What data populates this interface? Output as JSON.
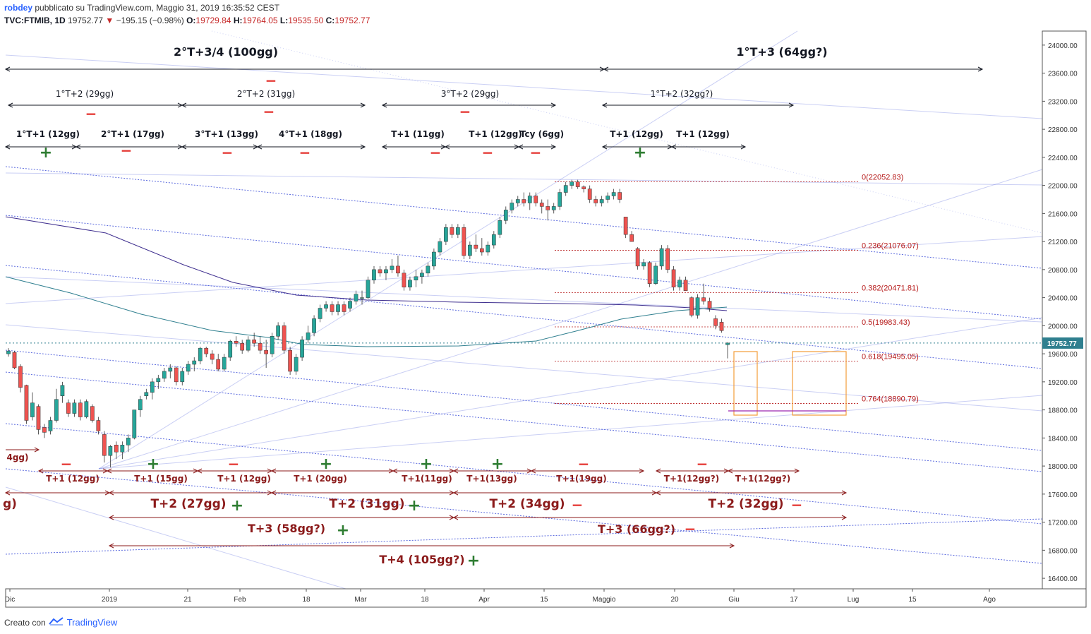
{
  "header": {
    "author": "robdey",
    "published": "pubblicato su TradingView.com, Maggio 31, 2019 16:35:52 CEST",
    "symbol": "TVC:FTMIB, 1D",
    "last": "19752.77",
    "change": "−195.15 (−0.98%)",
    "o_label": "O:",
    "o_value": "19729.84",
    "h_label": "H:",
    "h_value": "19764.05",
    "l_label": "L:",
    "l_value": "19535.50",
    "c_label": "C:",
    "c_value": "19752.77"
  },
  "footer": {
    "created_with": "Creato con",
    "brand": "TradingView"
  },
  "colors": {
    "up": "#26a69a",
    "down": "#ef5350",
    "annot_dark": "#131722",
    "annot_red": "#8b1a1a",
    "plus": "#2e7d32",
    "minus": "#e53935",
    "channel": "#3f51d8",
    "fib": "#b71c1c",
    "box": "#f29d38",
    "ma_slow": "#3f2f8f",
    "ma_fast": "#2f7f8f"
  },
  "chart_data": {
    "type": "candlestick",
    "yaxis": {
      "ticks": [
        "16400.00",
        "16800.00",
        "17200.00",
        "17600.00",
        "18000.00",
        "18400.00",
        "18800.00",
        "19200.00",
        "19600.00",
        "20000.00",
        "20400.00",
        "20800.00",
        "21200.00",
        "21600.00",
        "22000.00",
        "22400.00",
        "22800.00",
        "23200.00",
        "23600.00",
        "24000.00"
      ],
      "ylim": [
        16250,
        24200
      ],
      "last_price_label": "19752.77",
      "last_price": 19752.77
    },
    "xaxis": {
      "ticks": [
        "Dic",
        "2019",
        "21",
        "Feb",
        "18",
        "Mar",
        "18",
        "Apr",
        "15",
        "Maggio",
        "20",
        "Giu",
        "17",
        "Lug",
        "15",
        "Ago"
      ]
    },
    "candles_ohlc": [
      [
        19600,
        19680,
        19560,
        19640
      ],
      [
        19620,
        19640,
        19380,
        19400
      ],
      [
        19420,
        19450,
        19050,
        19120
      ],
      [
        19150,
        19160,
        18600,
        18650
      ],
      [
        18700,
        19050,
        18650,
        18900
      ],
      [
        18850,
        18880,
        18450,
        18520
      ],
      [
        18550,
        18600,
        18400,
        18480
      ],
      [
        18500,
        18700,
        18450,
        18650
      ],
      [
        18650,
        19100,
        18620,
        18950
      ],
      [
        19000,
        19200,
        18900,
        19150
      ],
      [
        18900,
        18950,
        18700,
        18750
      ],
      [
        18750,
        18950,
        18700,
        18900
      ],
      [
        18900,
        18950,
        18650,
        18700
      ],
      [
        18700,
        18950,
        18680,
        18920
      ],
      [
        18850,
        18880,
        18620,
        18650
      ],
      [
        18650,
        18700,
        18450,
        18500
      ],
      [
        18450,
        18500,
        18050,
        18150
      ],
      [
        18150,
        18300,
        17980,
        18280
      ],
      [
        18300,
        18350,
        18100,
        18200
      ],
      [
        18200,
        18350,
        18100,
        18300
      ],
      [
        18300,
        18450,
        18200,
        18400
      ],
      [
        18400,
        18800,
        18380,
        18800
      ],
      [
        18800,
        19000,
        18700,
        18950
      ],
      [
        19000,
        19100,
        18950,
        19050
      ],
      [
        19050,
        19250,
        18950,
        19200
      ],
      [
        19200,
        19300,
        19100,
        19250
      ],
      [
        19250,
        19400,
        19200,
        19350
      ],
      [
        19350,
        19450,
        19250,
        19400
      ],
      [
        19400,
        19420,
        19150,
        19200
      ],
      [
        19200,
        19400,
        19150,
        19350
      ],
      [
        19350,
        19500,
        19300,
        19450
      ],
      [
        19450,
        19550,
        19350,
        19500
      ],
      [
        19500,
        19700,
        19450,
        19680
      ],
      [
        19680,
        19700,
        19550,
        19600
      ],
      [
        19600,
        19650,
        19450,
        19520
      ],
      [
        19520,
        19600,
        19350,
        19380
      ],
      [
        19380,
        19600,
        19350,
        19550
      ],
      [
        19550,
        19800,
        19500,
        19780
      ],
      [
        19780,
        19850,
        19700,
        19750
      ],
      [
        19750,
        19800,
        19600,
        19650
      ],
      [
        19650,
        19850,
        19620,
        19800
      ],
      [
        19800,
        19900,
        19700,
        19750
      ],
      [
        19750,
        19850,
        19600,
        19650
      ],
      [
        19650,
        19800,
        19400,
        19600
      ],
      [
        19600,
        19900,
        19550,
        19850
      ],
      [
        19850,
        20050,
        19800,
        20000
      ],
      [
        20000,
        20050,
        19600,
        19650
      ],
      [
        19650,
        19700,
        19300,
        19350
      ],
      [
        19350,
        19600,
        19300,
        19550
      ],
      [
        19550,
        19850,
        19500,
        19800
      ],
      [
        19800,
        20000,
        19750,
        19900
      ],
      [
        19900,
        20150,
        19850,
        20100
      ],
      [
        20100,
        20300,
        20050,
        20250
      ],
      [
        20250,
        20350,
        20200,
        20300
      ],
      [
        20300,
        20350,
        20150,
        20200
      ],
      [
        20200,
        20350,
        20150,
        20300
      ],
      [
        20300,
        20350,
        20150,
        20200
      ],
      [
        20250,
        20400,
        20200,
        20350
      ],
      [
        20350,
        20500,
        20300,
        20450
      ],
      [
        20400,
        20500,
        20300,
        20400
      ],
      [
        20400,
        20700,
        20380,
        20650
      ],
      [
        20650,
        20850,
        20600,
        20800
      ],
      [
        20800,
        20850,
        20700,
        20750
      ],
      [
        20750,
        20850,
        20650,
        20800
      ],
      [
        20800,
        20950,
        20750,
        20850
      ],
      [
        20850,
        21000,
        20700,
        20750
      ],
      [
        20750,
        20800,
        20500,
        20550
      ],
      [
        20550,
        20700,
        20500,
        20650
      ],
      [
        20650,
        20800,
        20550,
        20700
      ],
      [
        20700,
        20800,
        20600,
        20750
      ],
      [
        20750,
        20900,
        20700,
        20850
      ],
      [
        20850,
        21100,
        20800,
        21050
      ],
      [
        21050,
        21250,
        21000,
        21200
      ],
      [
        21200,
        21450,
        21150,
        21400
      ],
      [
        21400,
        21450,
        21250,
        21300
      ],
      [
        21300,
        21450,
        21250,
        21400
      ],
      [
        21400,
        21450,
        20950,
        21000
      ],
      [
        21000,
        21200,
        20950,
        21150
      ],
      [
        21150,
        21300,
        21050,
        21100
      ],
      [
        21100,
        21250,
        21000,
        21050
      ],
      [
        21050,
        21200,
        21000,
        21150
      ],
      [
        21150,
        21350,
        21100,
        21300
      ],
      [
        21300,
        21550,
        21250,
        21500
      ],
      [
        21500,
        21700,
        21450,
        21650
      ],
      [
        21650,
        21800,
        21600,
        21750
      ],
      [
        21750,
        21850,
        21700,
        21800
      ],
      [
        21800,
        21900,
        21700,
        21750
      ],
      [
        21750,
        21900,
        21650,
        21850
      ],
      [
        21850,
        21900,
        21700,
        21750
      ],
      [
        21750,
        21800,
        21600,
        21700
      ],
      [
        21700,
        21800,
        21500,
        21650
      ],
      [
        21650,
        21750,
        21600,
        21700
      ],
      [
        21700,
        21950,
        21650,
        21900
      ],
      [
        21900,
        22050,
        21850,
        22000
      ],
      [
        22000,
        22080,
        21950,
        22050
      ],
      [
        22050,
        22080,
        21950,
        21980
      ],
      [
        21980,
        22000,
        21900,
        21950
      ],
      [
        21950,
        22000,
        21750,
        21800
      ],
      [
        21800,
        21850,
        21700,
        21750
      ],
      [
        21750,
        21850,
        21700,
        21800
      ],
      [
        21800,
        21900,
        21750,
        21850
      ],
      [
        21850,
        21950,
        21800,
        21900
      ],
      [
        21900,
        21950,
        21750,
        21800
      ],
      [
        21550,
        21550,
        21250,
        21300
      ],
      [
        21300,
        21350,
        21200,
        21200
      ],
      [
        21100,
        21120,
        20800,
        20850
      ],
      [
        20850,
        20950,
        20800,
        20900
      ],
      [
        20900,
        20920,
        20550,
        20600
      ],
      [
        20600,
        20900,
        20580,
        20850
      ],
      [
        20850,
        21150,
        20800,
        21100
      ],
      [
        21100,
        21150,
        20750,
        20800
      ],
      [
        20800,
        20850,
        20500,
        20550
      ],
      [
        20550,
        20700,
        20500,
        20650
      ],
      [
        20650,
        20700,
        20500,
        20500
      ],
      [
        20400,
        20420,
        20120,
        20150
      ],
      [
        20150,
        20450,
        20100,
        20400
      ],
      [
        20400,
        20600,
        20300,
        20350
      ],
      [
        20350,
        20400,
        20200,
        20250
      ],
      [
        20100,
        20150,
        19950,
        20000
      ],
      [
        20050,
        20100,
        19900,
        19930
      ],
      [
        19730,
        19764,
        19535,
        19753
      ]
    ],
    "moving_averages": [
      "ma-slow",
      "ma-fast"
    ],
    "fib_levels": [
      {
        "label": "0(22052.83)",
        "value": 22052.83
      },
      {
        "label": "0.236(21076.07)",
        "value": 21076.07
      },
      {
        "label": "0.382(20471.81)",
        "value": 20471.81
      },
      {
        "label": "0.5(19983.43)",
        "value": 19983.43
      },
      {
        "label": "0.618(19495.05)",
        "value": 19495.05
      },
      {
        "label": "0.764(18890.79)",
        "value": 18890.79
      }
    ],
    "top_annotations": {
      "row1": [
        {
          "text": "2°T+3/4 (100gg)"
        },
        {
          "text": "1°T+3 (64gg?)"
        }
      ],
      "row2": [
        {
          "text": "1°T+2 (29gg)"
        },
        {
          "text": "2°T+2 (31gg)"
        },
        {
          "text": "3°T+2 (29gg)"
        },
        {
          "text": "1°T+2 (32gg?)"
        }
      ],
      "row3": [
        {
          "text": "1°T+1 (12gg)"
        },
        {
          "text": "2°T+1 (17gg)"
        },
        {
          "text": "3°T+1 (13gg)"
        },
        {
          "text": "4°T+1 (18gg)"
        },
        {
          "text": "T+1 (11gg)"
        },
        {
          "text": "T+1 (12gg)"
        },
        {
          "text": "Tcy (6gg)"
        },
        {
          "text": "T+1 (12gg)"
        },
        {
          "text": "T+1 (12gg)"
        }
      ]
    },
    "bottom_annotations": {
      "t1": [
        {
          "text": "4gg)"
        },
        {
          "text": "T+1 (12gg)"
        },
        {
          "text": "T+1 (15gg)"
        },
        {
          "text": "T+1 (12gg)"
        },
        {
          "text": "T+1 (20gg)"
        },
        {
          "text": "T+1(11gg)"
        },
        {
          "text": "T+1(13gg)"
        },
        {
          "text": "T+1(19gg)"
        },
        {
          "text": "T+1(12gg?)"
        },
        {
          "text": "T+1(12gg?)"
        }
      ],
      "t2": [
        {
          "text": "g)"
        },
        {
          "text": "T+2 (27gg)"
        },
        {
          "text": "T+2 (31gg)"
        },
        {
          "text": "T+2 (34gg)"
        },
        {
          "text": "T+2 (32gg)"
        }
      ],
      "t3": [
        {
          "text": "T+3 (58gg?)"
        },
        {
          "text": "T+3 (66gg?)"
        }
      ],
      "t4": [
        {
          "text": "T+4 (105gg?)"
        }
      ]
    }
  }
}
